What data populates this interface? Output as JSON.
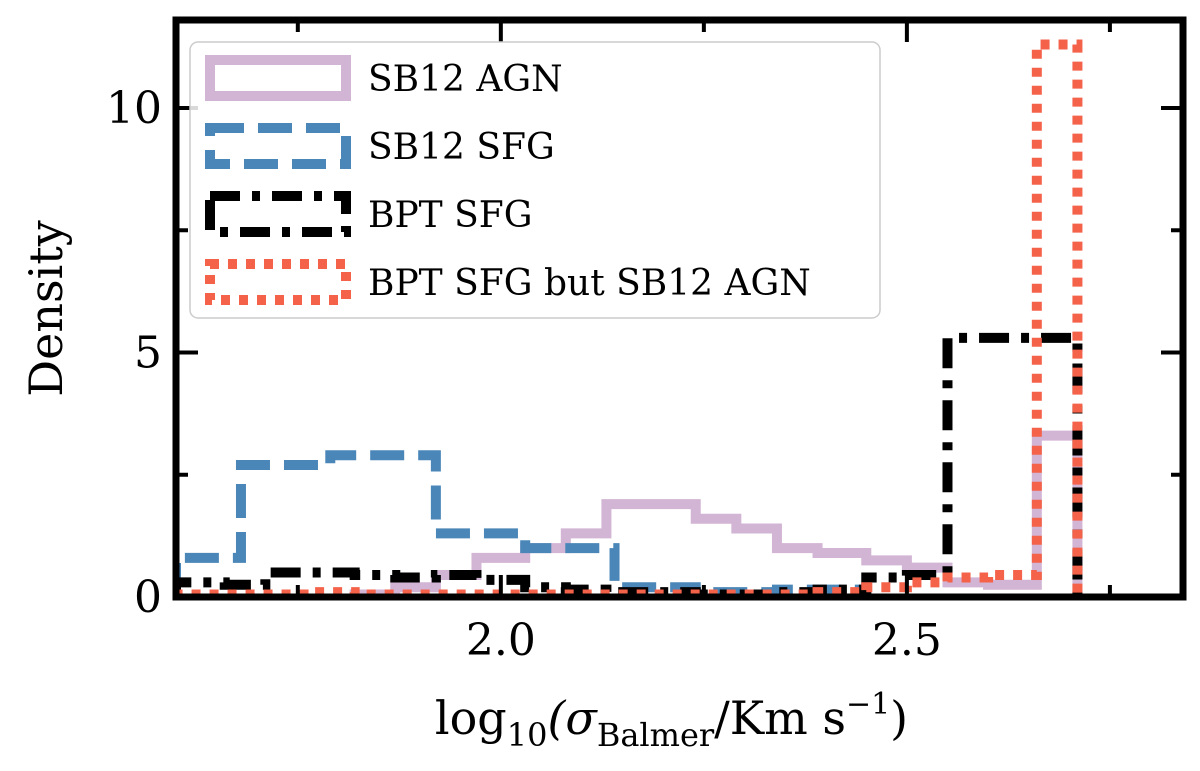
{
  "chart_data": {
    "type": "histogram",
    "xlabel": {
      "prefix": "log",
      "sub": "10",
      "mid": "(σ",
      "sub2": "Balmer",
      "suffix": "/Km s",
      "sup": "−1",
      "close": ")"
    },
    "ylabel": "Density",
    "xlim": [
      1.6,
      2.84
    ],
    "ylim": [
      0,
      11.8
    ],
    "x_ticks": [
      {
        "value": 2.0,
        "label": "2.0"
      },
      {
        "value": 2.5,
        "label": "2.5"
      }
    ],
    "y_ticks": [
      {
        "value": 0,
        "label": "0"
      },
      {
        "value": 5,
        "label": "5"
      },
      {
        "value": 10,
        "label": "10"
      }
    ],
    "y_minor_ticks": [
      2.5,
      7.5
    ],
    "x_minor_ticks": [
      1.75,
      2.25,
      2.75
    ],
    "legend_position": "upper-left",
    "series": [
      {
        "name": "SB12 AGN",
        "color": "#d2b4d4",
        "linestyle": "solid",
        "edges": [
          1.82,
          1.87,
          1.92,
          1.97,
          2.03,
          2.08,
          2.13,
          2.18,
          2.24,
          2.29,
          2.34,
          2.39,
          2.45,
          2.5,
          2.55,
          2.6,
          2.66,
          2.71
        ],
        "values": [
          0.05,
          0.2,
          0.45,
          0.8,
          1.0,
          1.3,
          1.9,
          1.9,
          1.6,
          1.4,
          1.0,
          0.9,
          0.75,
          0.6,
          0.3,
          0.25,
          3.3
        ]
      },
      {
        "name": "SB12 SFG",
        "color": "#4a86b8",
        "linestyle": "dashed",
        "edges": [
          1.6,
          1.68,
          1.79,
          1.89,
          1.92,
          2.03,
          2.14,
          2.24,
          2.34,
          2.45
        ],
        "values": [
          0.8,
          2.7,
          2.9,
          2.9,
          1.3,
          1.0,
          0.2,
          0.1,
          0.15
        ]
      },
      {
        "name": "BPT SFG",
        "color": "#000000",
        "linestyle": "dashdot",
        "edges": [
          1.6,
          1.66,
          1.71,
          1.77,
          1.82,
          1.87,
          1.92,
          1.97,
          2.03,
          2.08,
          2.13,
          2.18,
          2.24,
          2.29,
          2.34,
          2.39,
          2.45,
          2.5,
          2.55,
          2.6,
          2.66,
          2.71
        ],
        "values": [
          0.3,
          0.25,
          0.5,
          0.5,
          0.45,
          0.4,
          0.45,
          0.35,
          0.2,
          0.15,
          0.1,
          0.1,
          0.05,
          0.05,
          0.1,
          0.15,
          0.4,
          0.45,
          5.3,
          5.3,
          5.3
        ]
      },
      {
        "name": "BPT SFG but SB12 AGN",
        "color": "#f4624a",
        "linestyle": "dotted",
        "edges": [
          1.6,
          1.66,
          1.71,
          1.77,
          1.82,
          1.87,
          1.92,
          1.97,
          2.03,
          2.08,
          2.13,
          2.18,
          2.24,
          2.29,
          2.34,
          2.39,
          2.45,
          2.5,
          2.55,
          2.6,
          2.66,
          2.71
        ],
        "values": [
          0.05,
          0.05,
          0.05,
          0.1,
          0.05,
          0.05,
          0.05,
          0.05,
          0.05,
          0.05,
          0.05,
          0.05,
          0.05,
          0.05,
          0.05,
          0.1,
          0.2,
          0.3,
          0.4,
          0.45,
          11.3
        ]
      }
    ]
  }
}
